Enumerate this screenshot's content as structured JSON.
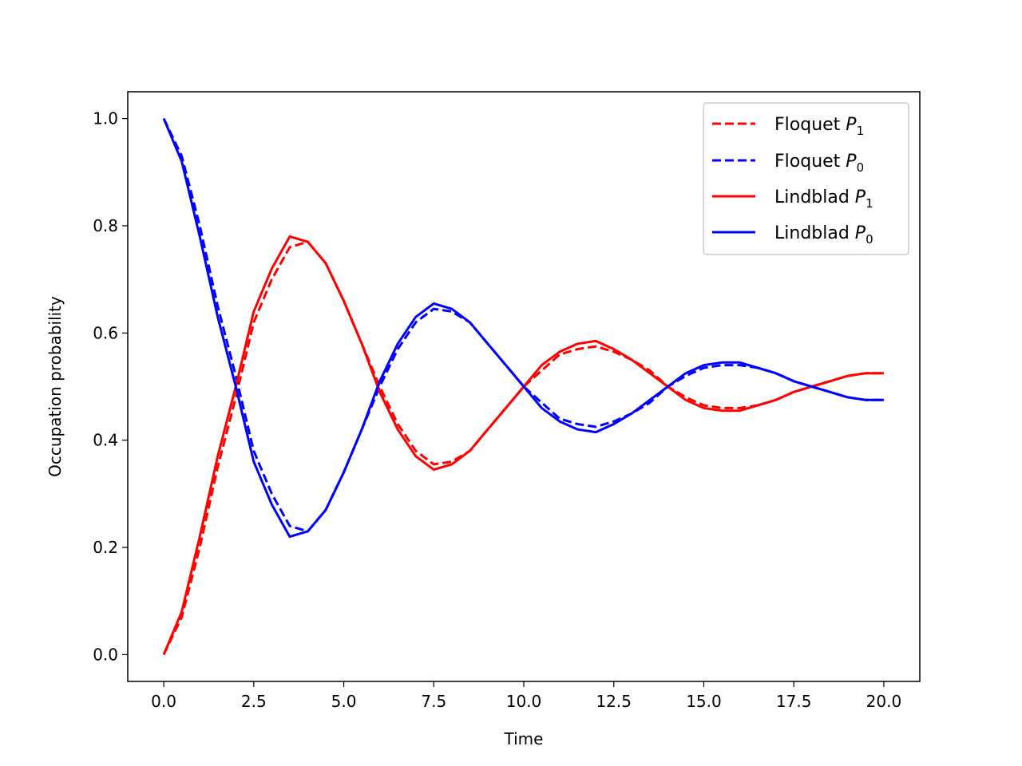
{
  "chart_data": {
    "type": "line",
    "title": "",
    "xlabel": "Time",
    "ylabel": "Occupation probability",
    "xlim": [
      -1.0,
      21.0
    ],
    "ylim": [
      -0.05,
      1.05
    ],
    "xticks": [
      0.0,
      2.5,
      5.0,
      7.5,
      10.0,
      12.5,
      15.0,
      17.5,
      20.0
    ],
    "xtick_labels": [
      "0.0",
      "2.5",
      "5.0",
      "7.5",
      "10.0",
      "12.5",
      "15.0",
      "17.5",
      "20.0"
    ],
    "yticks": [
      0.0,
      0.2,
      0.4,
      0.6,
      0.8,
      1.0
    ],
    "ytick_labels": [
      "0.0",
      "0.2",
      "0.4",
      "0.6",
      "0.8",
      "1.0"
    ],
    "grid": false,
    "legend_position": "top-right",
    "series": [
      {
        "name": "Floquet P1",
        "label_base": "Floquet ",
        "label_var": "P",
        "label_sub": "1",
        "color": "#ff0000",
        "style": "dashed",
        "x": [
          0.0,
          0.5,
          1.0,
          1.5,
          2.0,
          2.5,
          3.0,
          3.5,
          4.0,
          4.5,
          5.0,
          5.5,
          6.0,
          6.5,
          7.0,
          7.5,
          8.0,
          8.5,
          9.0,
          9.5,
          10.0,
          10.5,
          11.0,
          11.5,
          12.0,
          12.5,
          13.0,
          13.5,
          14.0,
          14.5,
          15.0,
          15.5,
          16.0,
          16.5,
          17.0,
          17.5,
          18.0,
          18.5,
          19.0,
          19.5,
          20.0
        ],
        "y": [
          0.0,
          0.07,
          0.2,
          0.35,
          0.48,
          0.62,
          0.7,
          0.76,
          0.77,
          0.73,
          0.66,
          0.58,
          0.5,
          0.43,
          0.38,
          0.355,
          0.36,
          0.38,
          0.42,
          0.46,
          0.5,
          0.53,
          0.56,
          0.57,
          0.575,
          0.565,
          0.55,
          0.53,
          0.5,
          0.48,
          0.465,
          0.46,
          0.46,
          0.465,
          0.475,
          0.49,
          0.5,
          0.51,
          0.52,
          0.525,
          0.525
        ]
      },
      {
        "name": "Floquet P0",
        "label_base": "Floquet ",
        "label_var": "P",
        "label_sub": "0",
        "color": "#0000ff",
        "style": "dashed",
        "x": [
          0.0,
          0.5,
          1.0,
          1.5,
          2.0,
          2.5,
          3.0,
          3.5,
          4.0,
          4.5,
          5.0,
          5.5,
          6.0,
          6.5,
          7.0,
          7.5,
          8.0,
          8.5,
          9.0,
          9.5,
          10.0,
          10.5,
          11.0,
          11.5,
          12.0,
          12.5,
          13.0,
          13.5,
          14.0,
          14.5,
          15.0,
          15.5,
          16.0,
          16.5,
          17.0,
          17.5,
          18.0,
          18.5,
          19.0,
          19.5,
          20.0
        ],
        "y": [
          1.0,
          0.93,
          0.8,
          0.65,
          0.52,
          0.38,
          0.3,
          0.24,
          0.23,
          0.27,
          0.34,
          0.42,
          0.5,
          0.57,
          0.62,
          0.645,
          0.64,
          0.62,
          0.58,
          0.54,
          0.5,
          0.47,
          0.44,
          0.43,
          0.425,
          0.435,
          0.45,
          0.47,
          0.5,
          0.52,
          0.535,
          0.54,
          0.54,
          0.535,
          0.525,
          0.51,
          0.5,
          0.49,
          0.48,
          0.475,
          0.475
        ]
      },
      {
        "name": "Lindblad P1",
        "label_base": "Lindblad ",
        "label_var": "P",
        "label_sub": "1",
        "color": "#ff0000",
        "style": "solid",
        "x": [
          0.0,
          0.5,
          1.0,
          1.5,
          2.0,
          2.5,
          3.0,
          3.5,
          4.0,
          4.5,
          5.0,
          5.5,
          6.0,
          6.5,
          7.0,
          7.5,
          8.0,
          8.5,
          9.0,
          9.5,
          10.0,
          10.5,
          11.0,
          11.5,
          12.0,
          12.5,
          13.0,
          13.5,
          14.0,
          14.5,
          15.0,
          15.5,
          16.0,
          16.5,
          17.0,
          17.5,
          18.0,
          18.5,
          19.0,
          19.5,
          20.0
        ],
        "y": [
          0.0,
          0.08,
          0.22,
          0.37,
          0.5,
          0.64,
          0.72,
          0.78,
          0.77,
          0.73,
          0.66,
          0.58,
          0.49,
          0.42,
          0.37,
          0.345,
          0.355,
          0.38,
          0.42,
          0.46,
          0.5,
          0.54,
          0.565,
          0.58,
          0.585,
          0.57,
          0.55,
          0.525,
          0.5,
          0.475,
          0.46,
          0.455,
          0.455,
          0.465,
          0.475,
          0.49,
          0.5,
          0.51,
          0.52,
          0.525,
          0.525
        ]
      },
      {
        "name": "Lindblad P0",
        "label_base": "Lindblad ",
        "label_var": "P",
        "label_sub": "0",
        "color": "#0000ff",
        "style": "solid",
        "x": [
          0.0,
          0.5,
          1.0,
          1.5,
          2.0,
          2.5,
          3.0,
          3.5,
          4.0,
          4.5,
          5.0,
          5.5,
          6.0,
          6.5,
          7.0,
          7.5,
          8.0,
          8.5,
          9.0,
          9.5,
          10.0,
          10.5,
          11.0,
          11.5,
          12.0,
          12.5,
          13.0,
          13.5,
          14.0,
          14.5,
          15.0,
          15.5,
          16.0,
          16.5,
          17.0,
          17.5,
          18.0,
          18.5,
          19.0,
          19.5,
          20.0
        ],
        "y": [
          1.0,
          0.92,
          0.78,
          0.63,
          0.5,
          0.36,
          0.28,
          0.22,
          0.23,
          0.27,
          0.34,
          0.42,
          0.51,
          0.58,
          0.63,
          0.655,
          0.645,
          0.62,
          0.58,
          0.54,
          0.5,
          0.46,
          0.435,
          0.42,
          0.415,
          0.43,
          0.45,
          0.475,
          0.5,
          0.525,
          0.54,
          0.545,
          0.545,
          0.535,
          0.525,
          0.51,
          0.5,
          0.49,
          0.48,
          0.475,
          0.475
        ]
      }
    ]
  }
}
